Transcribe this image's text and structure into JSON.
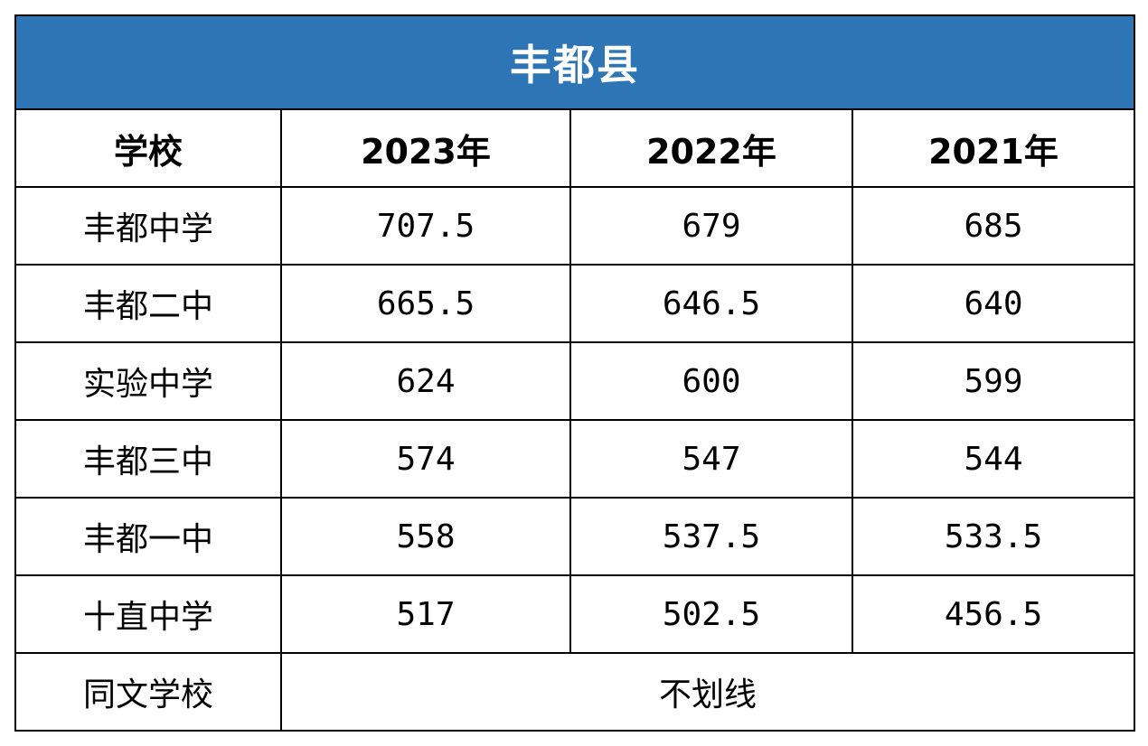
{
  "table": {
    "title": "丰都县",
    "headers": [
      "学校",
      "2023年",
      "2022年",
      "2021年"
    ],
    "rows": [
      {
        "school": "丰都中学",
        "y2023": "707.5",
        "y2022": "679",
        "y2021": "685"
      },
      {
        "school": "丰都二中",
        "y2023": "665.5",
        "y2022": "646.5",
        "y2021": "640"
      },
      {
        "school": "实验中学",
        "y2023": "624",
        "y2022": "600",
        "y2021": "599"
      },
      {
        "school": "丰都三中",
        "y2023": "574",
        "y2022": "547",
        "y2021": "544"
      },
      {
        "school": "丰都一中",
        "y2023": "558",
        "y2022": "537.5",
        "y2021": "533.5"
      },
      {
        "school": "十直中学",
        "y2023": "517",
        "y2022": "502.5",
        "y2021": "456.5"
      }
    ],
    "last_row": {
      "school": "同文学校",
      "note": "不划线"
    },
    "colors": {
      "title_bg": "#2e75b6",
      "title_text": "#ffffff",
      "border": "#000000"
    }
  }
}
